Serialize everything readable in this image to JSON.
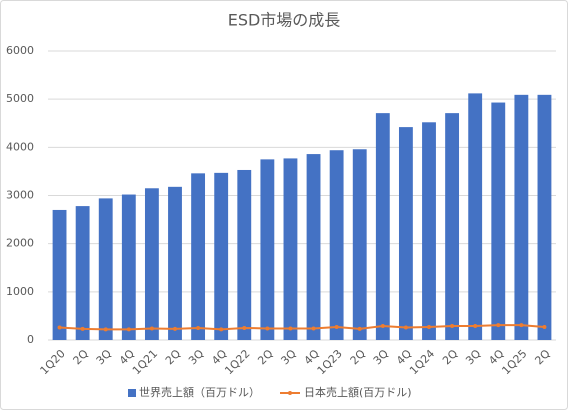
{
  "chart_data": {
    "type": "bar-line",
    "title": "ESD市場の成長",
    "categories": [
      "1Q20",
      "2Q",
      "3Q",
      "4Q",
      "1Q21",
      "2Q",
      "3Q",
      "4Q",
      "1Q22",
      "2Q",
      "3Q",
      "4Q",
      "1Q23",
      "2Q",
      "3Q",
      "4Q",
      "1Q24",
      "2Q",
      "3Q",
      "4Q",
      "1Q25",
      "2Q"
    ],
    "series": [
      {
        "name": "世界売上額（百万ドル）",
        "type": "bar",
        "color": "#4472c4",
        "values": [
          2700,
          2780,
          2940,
          3020,
          3150,
          3180,
          3460,
          3470,
          3530,
          3750,
          3770,
          3860,
          3940,
          3960,
          4710,
          4420,
          4520,
          4710,
          5120,
          4930,
          5090,
          5090
        ]
      },
      {
        "name": "日本売上額(百万ドル)",
        "type": "line",
        "color": "#ed7d31",
        "values": [
          260,
          230,
          220,
          220,
          240,
          230,
          250,
          220,
          250,
          240,
          240,
          240,
          270,
          230,
          290,
          260,
          270,
          290,
          290,
          310,
          310,
          270
        ]
      }
    ],
    "ylim": [
      0,
      6000
    ],
    "yticks": [
      0,
      1000,
      2000,
      3000,
      4000,
      5000,
      6000
    ],
    "grid": true,
    "legend": "bottom"
  }
}
